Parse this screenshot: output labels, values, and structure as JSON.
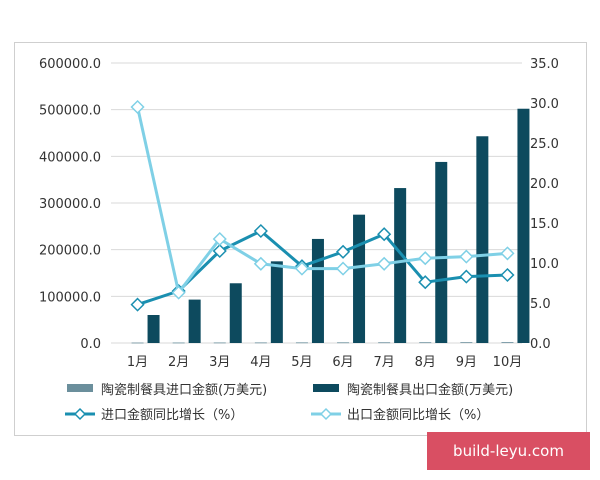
{
  "chart_data": {
    "type": "bar",
    "categories": [
      "1月",
      "2月",
      "3月",
      "4月",
      "5月",
      "6月",
      "7月",
      "8月",
      "9月",
      "10月"
    ],
    "ylim": [
      0,
      600000
    ],
    "y2lim": [
      0,
      35
    ],
    "y_ticks": [
      "0.0",
      "100000.0",
      "200000.0",
      "300000.0",
      "400000.0",
      "500000.0",
      "600000.0"
    ],
    "y2_ticks": [
      "0.0",
      "5.0",
      "10.0",
      "15.0",
      "20.0",
      "25.0",
      "30.0",
      "35.0"
    ],
    "grid": true,
    "legend_position": "bottom",
    "series": [
      {
        "name": "陶瓷制餐具进口金额(万美元)",
        "kind": "bar",
        "axis": "left",
        "color": "#6b8f9c",
        "values": [
          900,
          1000,
          1100,
          1200,
          1300,
          1400,
          1500,
          1600,
          1700,
          1800
        ]
      },
      {
        "name": "陶瓷制餐具出口金额(万美元)",
        "kind": "bar",
        "axis": "left",
        "color": "#0d4a5e",
        "values": [
          60000,
          93000,
          128000,
          175000,
          223000,
          275000,
          332000,
          388000,
          443000,
          502000
        ]
      },
      {
        "name": "进口金额同比增长（%）",
        "kind": "line",
        "axis": "right",
        "color": "#1a8fb0",
        "values": [
          4.8,
          6.5,
          11.5,
          14.0,
          9.6,
          11.4,
          13.6,
          7.6,
          8.3,
          8.5
        ]
      },
      {
        "name": "出口金额同比增长（%）",
        "kind": "line",
        "axis": "right",
        "color": "#7fd0e6",
        "values": [
          29.5,
          6.3,
          13.0,
          9.9,
          9.3,
          9.3,
          9.9,
          10.6,
          10.8,
          11.2
        ]
      }
    ]
  },
  "watermark": {
    "text": "build-leyu.com",
    "background": "#d94f63"
  }
}
